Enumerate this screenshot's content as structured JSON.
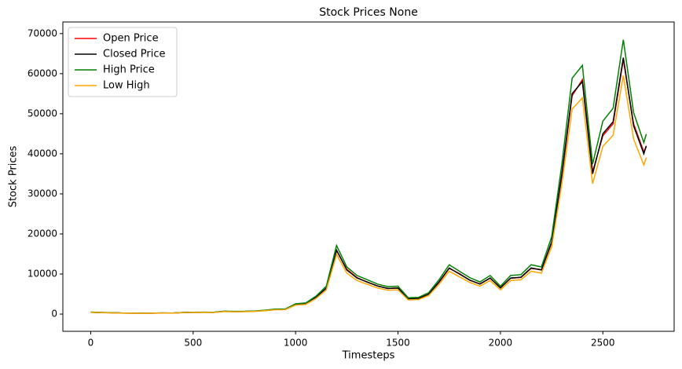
{
  "chart_data": {
    "type": "line",
    "title": "Stock Prices None",
    "x_label": "Timesteps",
    "y_label": "Stock Prices",
    "x": [
      0,
      50,
      100,
      150,
      200,
      250,
      300,
      350,
      400,
      450,
      500,
      550,
      600,
      650,
      700,
      750,
      800,
      850,
      900,
      950,
      1000,
      1050,
      1100,
      1150,
      1200,
      1250,
      1300,
      1350,
      1400,
      1450,
      1500,
      1550,
      1600,
      1650,
      1700,
      1750,
      1800,
      1850,
      1900,
      1950,
      2000,
      2050,
      2100,
      2150,
      2200,
      2250,
      2300,
      2350,
      2400,
      2450,
      2500,
      2550,
      2600,
      2650,
      2700,
      2712
    ],
    "series": [
      {
        "name": "Open Price",
        "color": "#ff0000",
        "values": [
          455,
          383,
          332,
          258,
          241,
          231,
          238,
          268,
          252,
          376,
          418,
          442,
          418,
          675,
          625,
          636,
          716,
          895,
          1140,
          1210,
          2380,
          2620,
          4150,
          6400,
          15800,
          11200,
          9100,
          7950,
          7050,
          6380,
          6520,
          3850,
          3880,
          4950,
          7900,
          11400,
          10100,
          8450,
          7550,
          8950,
          6600,
          8950,
          9150,
          11400,
          11100,
          17700,
          34500,
          54500,
          58500,
          35500,
          44500,
          47500,
          63500,
          47500,
          40500,
          41800
        ]
      },
      {
        "name": "Closed Price",
        "color": "#000000",
        "values": [
          457,
          380,
          330,
          260,
          240,
          230,
          240,
          270,
          250,
          380,
          420,
          440,
          420,
          680,
          620,
          640,
          720,
          900,
          1150,
          1200,
          2400,
          2600,
          4200,
          6500,
          16000,
          11000,
          9000,
          8000,
          7000,
          6400,
          6500,
          3800,
          3900,
          5000,
          8000,
          11500,
          10000,
          8500,
          7500,
          9000,
          6500,
          9000,
          9200,
          11500,
          11000,
          18000,
          35000,
          55000,
          58000,
          35000,
          45000,
          48000,
          64000,
          47000,
          40000,
          42000
        ]
      },
      {
        "name": "High Price",
        "color": "#008000",
        "values": [
          489,
          407,
          353,
          278,
          257,
          246,
          257,
          289,
          268,
          407,
          449,
          471,
          449,
          728,
          663,
          685,
          770,
          963,
          1231,
          1284,
          2568,
          2782,
          4494,
          6955,
          17120,
          11770,
          9630,
          8560,
          7490,
          6848,
          6955,
          4066,
          4173,
          5350,
          8560,
          12305,
          10700,
          9095,
          8025,
          9630,
          6955,
          9630,
          9844,
          12305,
          11770,
          19260,
          37450,
          58850,
          62060,
          37450,
          48150,
          51360,
          68480,
          50290,
          42800,
          44940
        ]
      },
      {
        "name": "Low High",
        "color": "#ffa500",
        "values": [
          425,
          353,
          307,
          242,
          223,
          214,
          223,
          251,
          233,
          353,
          391,
          409,
          391,
          632,
          577,
          595,
          670,
          837,
          1070,
          1116,
          2232,
          2418,
          3906,
          6045,
          14880,
          10230,
          8370,
          7440,
          6510,
          5952,
          6045,
          3534,
          3627,
          4650,
          7440,
          10695,
          9300,
          7905,
          6975,
          8370,
          6045,
          8370,
          8556,
          10695,
          10230,
          16740,
          32550,
          51150,
          53940,
          32550,
          41850,
          44640,
          59520,
          43710,
          37200,
          39060
        ]
      }
    ],
    "xlim": [
      -136,
      2848
    ],
    "ylim": [
      -4300,
      72900
    ],
    "xticks": [
      0,
      500,
      1000,
      1500,
      2000,
      2500
    ],
    "yticks": [
      0,
      10000,
      20000,
      30000,
      40000,
      50000,
      60000,
      70000
    ],
    "legend": "upper left"
  }
}
